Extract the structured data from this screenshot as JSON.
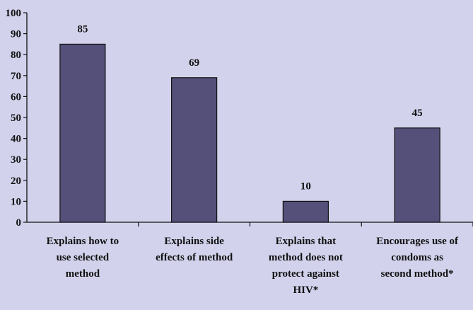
{
  "chart_data": {
    "type": "bar",
    "categories": [
      [
        "Explains how to",
        "use selected",
        "method"
      ],
      [
        "Explains side",
        "effects of method"
      ],
      [
        "Explains that",
        "method does not",
        "protect against",
        "HIV*"
      ],
      [
        "Encourages use of",
        "condoms as",
        "second method*"
      ]
    ],
    "values": [
      85,
      69,
      10,
      45
    ],
    "data_labels": [
      "85",
      "69",
      "10",
      "45"
    ],
    "yticks": [
      "0",
      "10",
      "20",
      "30",
      "40",
      "50",
      "60",
      "70",
      "80",
      "90",
      "100"
    ],
    "ylim": [
      0,
      100
    ],
    "grid": false,
    "colors": {
      "background": "#d2d2ec",
      "bar": "#55507a",
      "bar_edge": "#111111",
      "axis": "#111111"
    }
  }
}
